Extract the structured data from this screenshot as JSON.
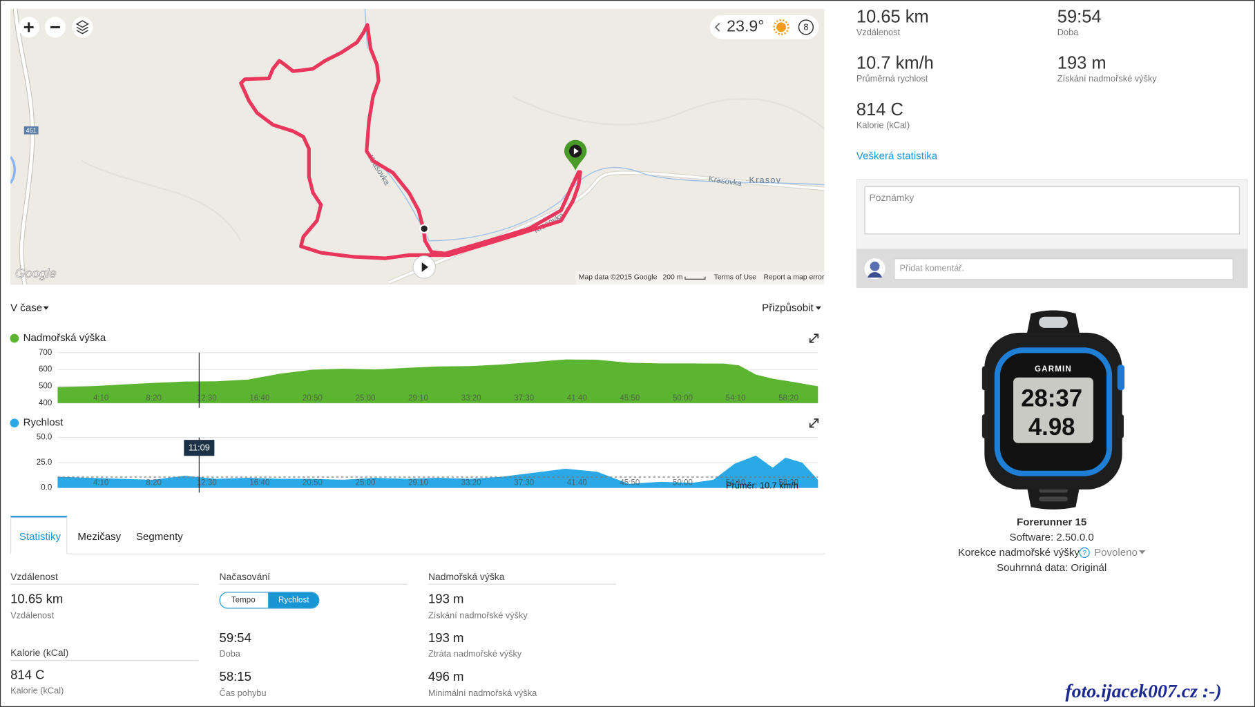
{
  "map": {
    "road_labels": [
      "Krasovka",
      "Krasovka",
      "Krasovka",
      "Krasov"
    ],
    "route_number": "451",
    "weather": {
      "temperature": "23.9°",
      "wind": "8"
    },
    "attribution": {
      "google": "Google",
      "map_data": "Map data ©2015 Google",
      "scale": "200 m",
      "terms": "Terms of Use",
      "report": "Report a map error"
    }
  },
  "summary": [
    {
      "value": "10.65 km",
      "label": "Vzdálenost"
    },
    {
      "value": "59:54",
      "label": "Doba"
    },
    {
      "value": "10.7 km/h",
      "label": "Průměrná rychlost"
    },
    {
      "value": "193 m",
      "label": "Získání nadmořské výšky"
    },
    {
      "value": "814 C",
      "label": "Kalorie (kCal)"
    }
  ],
  "summary_link": "Veškerá statistika",
  "notes_placeholder": "Poznámky",
  "comment_placeholder": "Přidat komentář.",
  "device": {
    "screen_brand": "GARMIN",
    "screen_time": "28:37",
    "screen_value": "4.98",
    "name": "Forerunner 15",
    "software": "Software: 2.50.0.0",
    "elevation_correction_label": "Korekce nadmořské výšky",
    "elevation_correction_value": "Povoleno",
    "summary_data": "Souhrnná data: Originál"
  },
  "chart_controls": {
    "x_mode": "V čase",
    "zoom": "Přizpůsobit"
  },
  "charts": [
    {
      "type": "area",
      "title": "Nadmořská výška",
      "color": "#5cb531",
      "x": [
        0,
        150,
        300,
        450,
        600,
        750,
        900,
        1050,
        1200,
        1350,
        1500,
        1650,
        1800,
        1950,
        2100,
        2250,
        2400,
        2550,
        2700,
        2850,
        3000,
        3150,
        3220,
        3300,
        3380,
        3480,
        3594
      ],
      "values": [
        495,
        500,
        510,
        520,
        528,
        530,
        540,
        575,
        598,
        605,
        600,
        610,
        618,
        620,
        630,
        645,
        660,
        658,
        640,
        636,
        636,
        635,
        625,
        570,
        545,
        525,
        500
      ],
      "xlim": [
        0,
        3594
      ],
      "ylim": [
        400,
        700
      ],
      "yticks": [
        400,
        500,
        600,
        700
      ],
      "xticks": [
        {
          "value": 250,
          "label": "4:10"
        },
        {
          "value": 500,
          "label": "8:20"
        },
        {
          "value": 750,
          "label": "12:30"
        },
        {
          "value": 1000,
          "label": "16:40"
        },
        {
          "value": 1250,
          "label": "20:50"
        },
        {
          "value": 1500,
          "label": "25:00"
        },
        {
          "value": 1750,
          "label": "29:10"
        },
        {
          "value": 2000,
          "label": "33:20"
        },
        {
          "value": 2250,
          "label": "37:30"
        },
        {
          "value": 2500,
          "label": "41:40"
        },
        {
          "value": 2750,
          "label": "45:50"
        },
        {
          "value": 3000,
          "label": "50:00"
        },
        {
          "value": 3250,
          "label": "54:10"
        },
        {
          "value": 3500,
          "label": "58:20"
        }
      ],
      "grid": true
    },
    {
      "type": "area",
      "title": "Rychlost",
      "color": "#2aa9e6",
      "x": [
        0,
        150,
        300,
        450,
        600,
        750,
        900,
        1050,
        1200,
        1350,
        1500,
        1650,
        1800,
        1950,
        2100,
        2250,
        2400,
        2550,
        2700,
        2850,
        3000,
        3100,
        3200,
        3300,
        3380,
        3440,
        3520,
        3594
      ],
      "values": [
        11,
        10,
        9,
        8,
        12,
        9,
        10,
        9,
        9,
        8,
        10,
        9,
        10,
        9,
        11,
        15,
        19,
        16,
        4,
        6,
        5,
        8,
        24,
        32,
        20,
        30,
        25,
        8
      ],
      "xlim": [
        0,
        3594
      ],
      "ylim": [
        0,
        50
      ],
      "yticks": [
        {
          "value": 0,
          "label": "0.0"
        },
        {
          "value": 25,
          "label": "25.0"
        },
        {
          "value": 50,
          "label": "50.0"
        }
      ],
      "xticks": [
        {
          "value": 250,
          "label": "4:10"
        },
        {
          "value": 500,
          "label": "8:20"
        },
        {
          "value": 750,
          "label": "12:30"
        },
        {
          "value": 1000,
          "label": "16:40"
        },
        {
          "value": 1250,
          "label": "20:50"
        },
        {
          "value": 1500,
          "label": "25:00"
        },
        {
          "value": 1750,
          "label": "29:10"
        },
        {
          "value": 2000,
          "label": "33:20"
        },
        {
          "value": 2250,
          "label": "37:30"
        },
        {
          "value": 2500,
          "label": "41:40"
        },
        {
          "value": 2750,
          "label": "45:50"
        },
        {
          "value": 3000,
          "label": "50:00"
        },
        {
          "value": 3250,
          "label": "54:10"
        },
        {
          "value": 3500,
          "label": "58:20"
        }
      ],
      "grid": true,
      "average": 10.7,
      "average_label": "Průměr: 10.7 km/h",
      "cursor": {
        "value": 669,
        "label": "11:09"
      }
    }
  ],
  "tabs": [
    "Statistiky",
    "Mezičasy",
    "Segmenty"
  ],
  "stats": {
    "distance": {
      "heading": "Vzdálenost",
      "items": [
        {
          "value": "10.65 km",
          "label": "Vzdálenost"
        }
      ]
    },
    "calories": {
      "heading": "Kalorie (kCal)",
      "items": [
        {
          "value": "814 C",
          "label": "Kalorie (kCal)"
        }
      ]
    },
    "timing": {
      "heading": "Načasování",
      "toggle": [
        "Tempo",
        "Rychlost"
      ],
      "items": [
        {
          "value": "59:54",
          "label": "Doba"
        },
        {
          "value": "58:15",
          "label": "Čas pohybu"
        }
      ]
    },
    "elevation": {
      "heading": "Nadmořská výška",
      "items": [
        {
          "value": "193 m",
          "label": "Získání nadmořské výšky"
        },
        {
          "value": "193 m",
          "label": "Ztráta nadmořské výšky"
        },
        {
          "value": "496 m",
          "label": "Minimální nadmořská výška"
        }
      ]
    }
  },
  "watermark": "foto.ijacek007.cz :-)"
}
